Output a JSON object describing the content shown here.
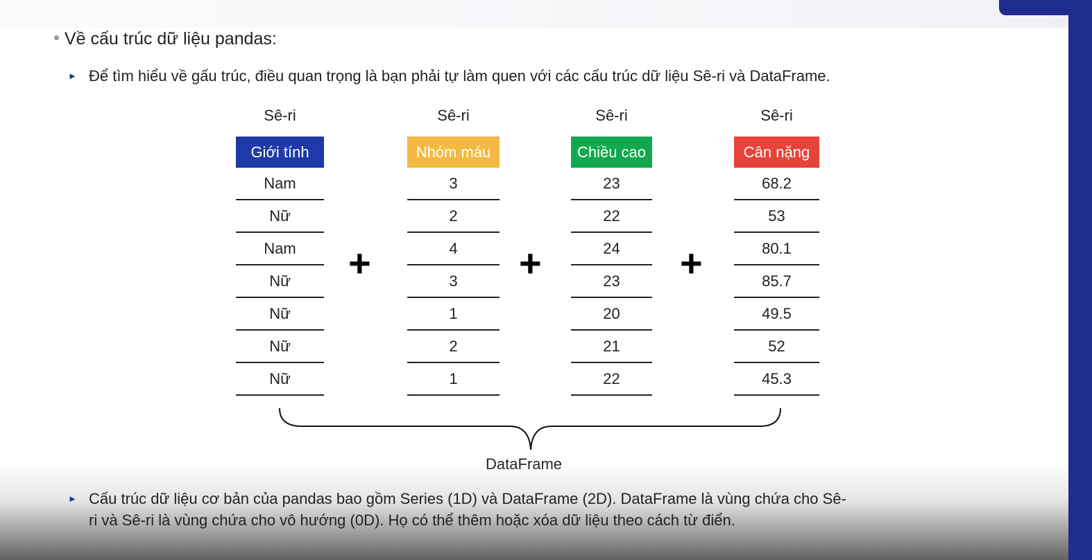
{
  "slide": {
    "bullet_main": "Về cấu trúc dữ liệu pandas:",
    "sub_bullet_1": "Để tìm hiểu về gấu trúc, điều quan trọng là bạn phải tự làm quen với các cấu trúc dữ liệu Sê-ri và DataFrame.",
    "sub_bullet_2_line1": "Cấu trúc dữ liệu cơ bản của pandas bao gồm Series (1D) và DataFrame (2D). DataFrame là vùng chứa cho Sê-",
    "sub_bullet_2_line2": "ri và Sê-ri là vùng chứa cho vô hướng (0D). Họ có thể thêm hoặc xóa dữ liệu theo cách từ điển."
  },
  "diagram": {
    "plus_symbol": "+",
    "dataframe_label": "DataFrame",
    "columns": [
      {
        "series_label": "Sê-ri",
        "name": "Giới tính",
        "color": "#1e3aa8",
        "values": [
          "Nam",
          "Nữ",
          "Nam",
          "Nữ",
          "Nữ",
          "Nữ",
          "Nữ"
        ]
      },
      {
        "series_label": "Sê-ri",
        "name": "Nhóm máu",
        "color": "#f4b942",
        "values": [
          "3",
          "2",
          "4",
          "3",
          "1",
          "2",
          "1"
        ]
      },
      {
        "series_label": "Sê-ri",
        "name": "Chiều cao",
        "color": "#12a94e",
        "values": [
          "23",
          "22",
          "24",
          "23",
          "20",
          "21",
          "22"
        ]
      },
      {
        "series_label": "Sê-ri",
        "name": "Cân nặng",
        "color": "#e8433a",
        "values": [
          "68.2",
          "53",
          "80.1",
          "85.7",
          "49.5",
          "52",
          "45.3"
        ]
      }
    ]
  },
  "colors": {
    "accent_navy": "#1f2d8e"
  }
}
